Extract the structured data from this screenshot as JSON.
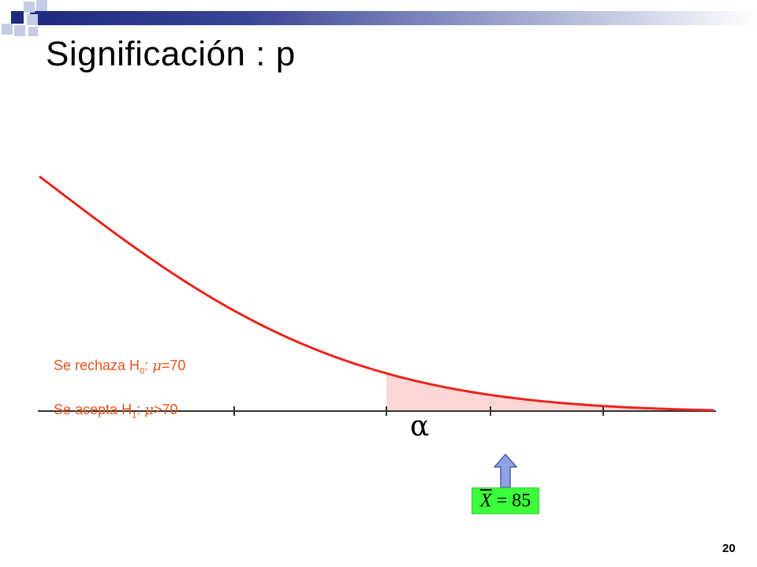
{
  "title": "Significación : p",
  "labels": {
    "reject_text": "Se rechaza H",
    "reject_sub": "0",
    "reject_sep": ": ",
    "reject_mu": "μ",
    "reject_cond": "=70",
    "accept_text": "Se acepta  H",
    "accept_sub": "1",
    "accept_sep": ": ",
    "accept_mu": "μ",
    "accept_cond": ">70"
  },
  "alpha_symbol": "α",
  "sample_mean": {
    "variable": "X",
    "equals": " = ",
    "value": "85"
  },
  "page_number": "20",
  "colors": {
    "curve": "#e8251e",
    "shaded_area": "#fdd6d6",
    "axis": "#333333",
    "labels": "#e8541c",
    "arrow_fill": "#8fa2e6",
    "highlight_box": "#3cff3c",
    "title_band": "#1e2a80"
  },
  "icons": {
    "arrow": "up-arrow-icon"
  }
}
